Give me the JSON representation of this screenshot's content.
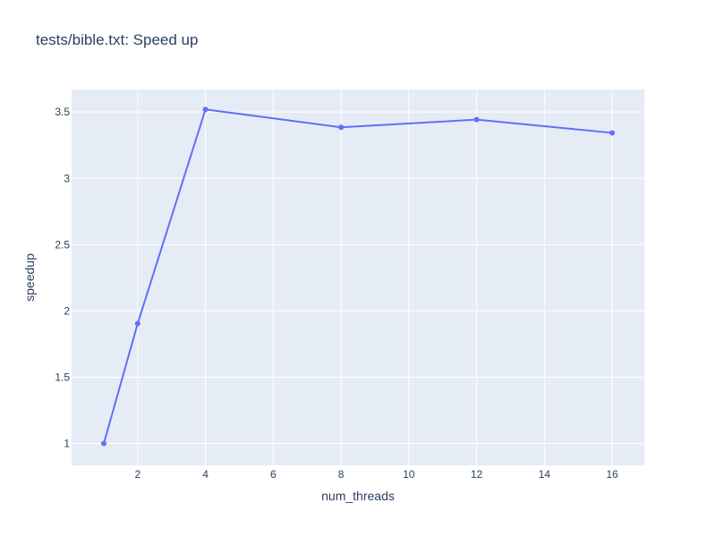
{
  "chart_data": {
    "type": "line",
    "title": "tests/bible.txt: Speed up",
    "xlabel": "num_threads",
    "ylabel": "speedup",
    "x": [
      1,
      2,
      4,
      8,
      12,
      16
    ],
    "series": [
      {
        "values": [
          1.0,
          1.905,
          3.52,
          3.385,
          3.443,
          3.343
        ],
        "color": "#636efa"
      }
    ],
    "xlim": [
      0.05,
      16.95
    ],
    "ylim": [
      0.835,
      3.67
    ],
    "xticks": [
      2,
      4,
      6,
      8,
      10,
      12,
      14,
      16
    ],
    "xtick_labels": [
      "2",
      "4",
      "6",
      "8",
      "10",
      "12",
      "14",
      "16"
    ],
    "yticks": [
      1,
      1.5,
      2,
      2.5,
      3,
      3.5
    ],
    "ytick_labels": [
      "1",
      "1.5",
      "2",
      "2.5",
      "3",
      "3.5"
    ],
    "grid": true,
    "plot_background": "#e5ecf6",
    "grid_color": "#ffffff",
    "text_color": "#2a3f5f"
  }
}
